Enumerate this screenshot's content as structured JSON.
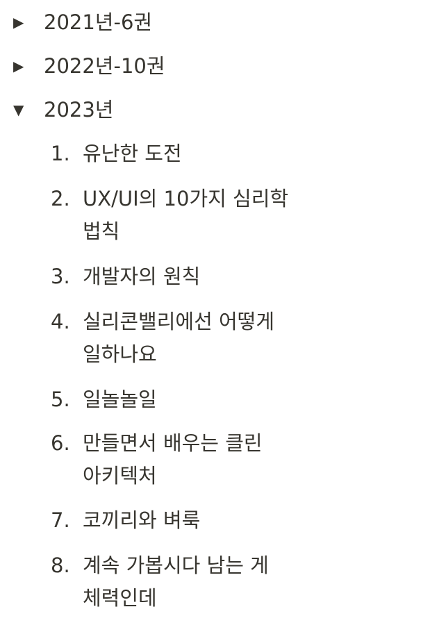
{
  "toggles": [
    {
      "arrow": "▶",
      "title": "2021년-6권"
    },
    {
      "arrow": "▶",
      "title": "2022년-10권"
    },
    {
      "arrow": "▼",
      "title": "2023년"
    }
  ],
  "books_2023": [
    {
      "num": "1.",
      "title": "유난한 도전"
    },
    {
      "num": "2.",
      "title": "UX/UI의 10가지 심리학 법칙"
    },
    {
      "num": "3.",
      "title": "개발자의 원칙"
    },
    {
      "num": "4.",
      "title": "실리콘밸리에선 어떻게 일하나요"
    },
    {
      "num": "5.",
      "title": "일놀놀일"
    },
    {
      "num": "6.",
      "title": "만들면서 배우는 클린 아키텍처"
    },
    {
      "num": "7.",
      "title": "코끼리와 벼룩"
    },
    {
      "num": "8.",
      "title": "계속 가봅시다 남는 게 체력인데"
    }
  ]
}
